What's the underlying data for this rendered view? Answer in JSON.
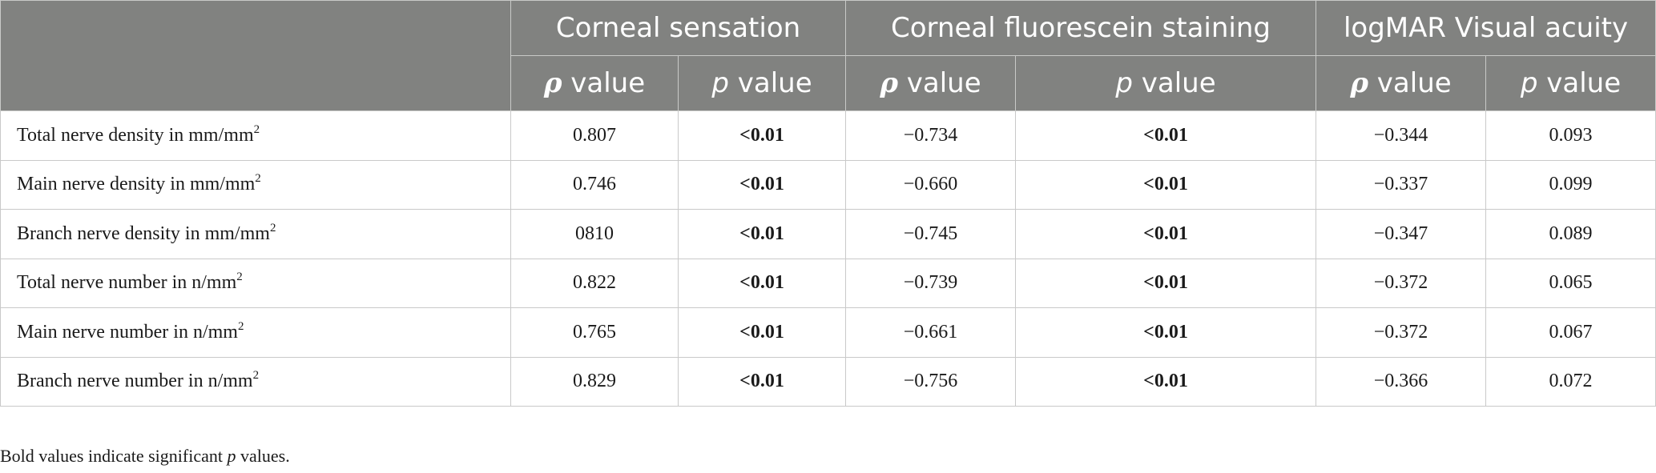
{
  "table": {
    "groups": [
      {
        "label": "Corneal sensation"
      },
      {
        "label": "Corneal fluorescein staining"
      },
      {
        "label": "logMAR Visual acuity"
      }
    ],
    "subheaders": {
      "rho_symbol": "ρ",
      "p_symbol": "p",
      "suffix": " value"
    },
    "rows": [
      {
        "label": "Total nerve density in mm/mm",
        "sup": "2",
        "cs_rho": "0.807",
        "cs_p": "<0.01",
        "cfs_rho": "−0.734",
        "cfs_p": "<0.01",
        "va_rho": "−0.344",
        "va_p": "0.093"
      },
      {
        "label": "Main nerve density in mm/mm",
        "sup": "2",
        "cs_rho": "0.746",
        "cs_p": "<0.01",
        "cfs_rho": "−0.660",
        "cfs_p": "<0.01",
        "va_rho": "−0.337",
        "va_p": "0.099"
      },
      {
        "label": "Branch nerve density in mm/mm",
        "sup": "2",
        "cs_rho": "0810",
        "cs_p": "<0.01",
        "cfs_rho": "−0.745",
        "cfs_p": "<0.01",
        "va_rho": "−0.347",
        "va_p": "0.089"
      },
      {
        "label": "Total nerve number in n/mm",
        "sup": "2",
        "cs_rho": "0.822",
        "cs_p": "<0.01",
        "cfs_rho": "−0.739",
        "cfs_p": "<0.01",
        "va_rho": "−0.372",
        "va_p": "0.065"
      },
      {
        "label": "Main nerve number in n/mm",
        "sup": "2",
        "cs_rho": "0.765",
        "cs_p": "<0.01",
        "cfs_rho": "−0.661",
        "cfs_p": "<0.01",
        "va_rho": "−0.372",
        "va_p": "0.067"
      },
      {
        "label": "Branch nerve number in n/mm",
        "sup": "2",
        "cs_rho": "0.829",
        "cs_p": "<0.01",
        "cfs_rho": "−0.756",
        "cfs_p": "<0.01",
        "va_rho": "−0.366",
        "va_p": "0.072"
      }
    ]
  },
  "footnote": {
    "before": "Bold values indicate significant ",
    "italic": "p",
    "after": " values."
  },
  "colors": {
    "header_bg": "#818280",
    "header_text": "#ffffff",
    "grid": "#c9c9c9"
  }
}
